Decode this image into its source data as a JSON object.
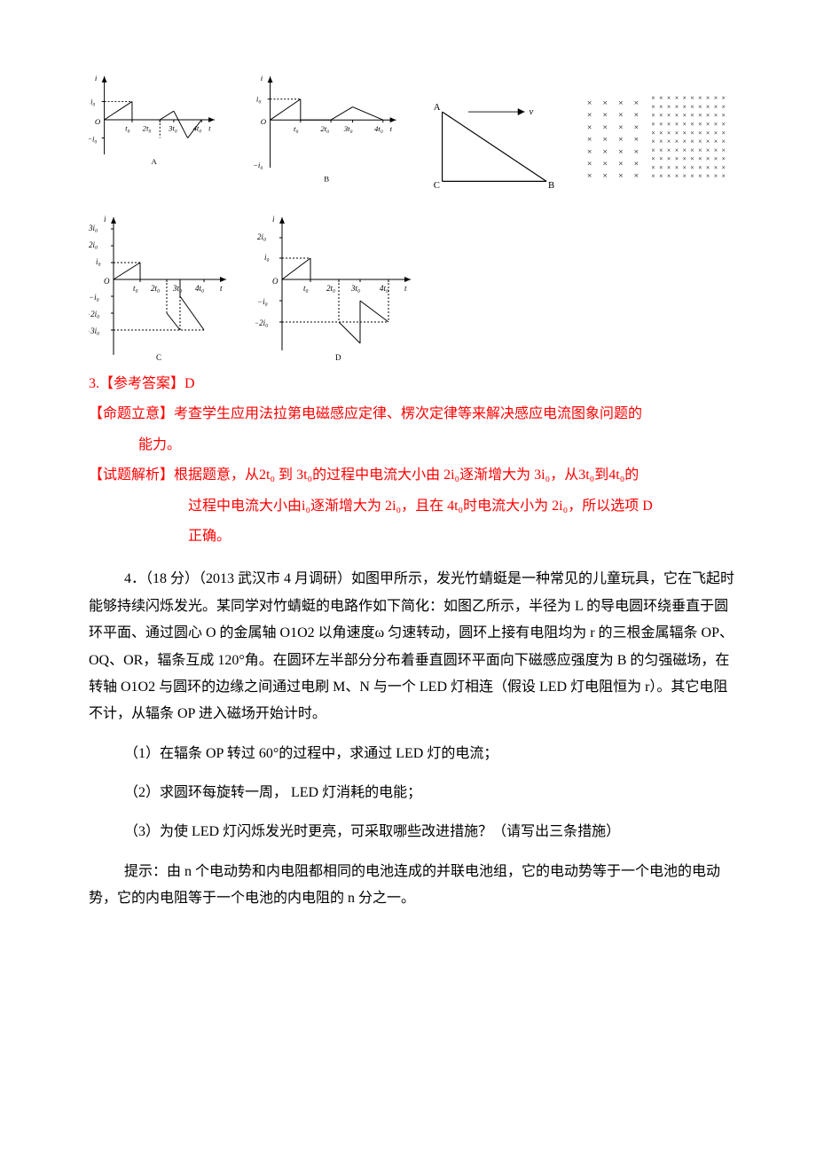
{
  "figures": {
    "graphA": {
      "label": "A",
      "axis_color": "#000000",
      "line_color": "#000000",
      "xticks_text": [
        "t₀",
        "2t₀",
        "3t₀",
        "4t₀",
        "t"
      ],
      "yticks_text": [
        "i₀",
        "−i₀"
      ]
    },
    "graphB": {
      "label": "B",
      "axis_color": "#000000",
      "line_color": "#000000",
      "xticks_text": [
        "t₀",
        "2t₀",
        "3t₀",
        "4t₀",
        "t"
      ],
      "yticks_text": [
        "i₀",
        "−i₀"
      ]
    },
    "graphC": {
      "label": "C",
      "axis_color": "#000000",
      "line_color": "#000000",
      "xticks_text": [
        "t₀",
        "2t₀",
        "3t₀",
        "4t₀",
        "t"
      ],
      "yticks_text": [
        "3i₀",
        "2i₀",
        "i₀",
        "−i₀",
        "−2i₀",
        "−3i₀"
      ]
    },
    "graphD": {
      "label": "D",
      "axis_color": "#000000",
      "line_color": "#000000",
      "xticks_text": [
        "t₀",
        "2t₀",
        "3t₀",
        "4t₀",
        "t"
      ],
      "yticks_text": [
        "2i₀",
        "i₀",
        "−i₀",
        "−2i₀"
      ]
    },
    "triangle": {
      "A": "A",
      "B": "B",
      "C": "C",
      "v": "v"
    }
  },
  "answer3": {
    "ref_label": "3.【参考答案】D",
    "intent_label": "【命题立意】考查学生应用法拉第电磁感应定律、楞次定律等来解决感应电流图象问题的",
    "intent_cont": "能力。",
    "analysis_label": "【试题解析】根据题意，从",
    "analysis_mid1": "的过程中电流大小由 2",
    "analysis_mid2": "逐渐增大为 3",
    "analysis_mid3": "，从",
    "analysis_mid4": "到",
    "analysis_mid5": "的",
    "analysis_line2a": "过程中电流大小由",
    "analysis_line2b": "逐渐增大为 2",
    "analysis_line2c": "，且在 4",
    "analysis_line2d": "时电流大小为 2",
    "analysis_line2e": "，所以选项 D",
    "analysis_line3": "正确。",
    "t2": "2t₀",
    "t3": "3t₀",
    "t4": "4t₀",
    "i0": "i₀",
    "t0": "t₀"
  },
  "problem4": {
    "body1": "4．（18 分）（2013 武汉市 4 月调研）如图甲所示，发光竹蜻蜓是一种常见的儿童玩具，它在飞起时能够持续闪烁发光。某同学对竹蜻蜓的电路作如下简化：如图乙所示，半径为 L 的导电圆环绕垂直于圆环平面、通过圆心 O 的金属轴 O1O2 以角速度ω 匀速转动，圆环上接有电阻均为 r 的三根金属辐条 OP、OQ、OR，辐条互成 120°角。在圆环左半部分分布着垂直圆环平面向下磁感应强度为 B 的匀强磁场，在转轴 O1O2 与圆环的边缘之间通过电刷 M、N 与一个 LED 灯相连（假设 LED 灯电阻恒为 r）。其它电阻不计，从辐条 OP 进入磁场开始计时。",
    "q1": "（1）在辐条 OP 转过 60°的过程中，求通过 LED 灯的电流；",
    "q2": "（2）求圆环每旋转一周， LED 灯消耗的电能；",
    "q3": "（3）为使 LED 灯闪烁发光时更亮，可采取哪些改进措施？（请写出三条措施）",
    "hint": "提示：由 n 个电动势和内电阻都相同的电池连成的并联电池组，它的电动势等于一个电池的电动势，它的内电阻等于一个电池的内电阻的 n 分之一。"
  },
  "colors": {
    "red": "#ff0000",
    "black": "#000000",
    "gray_wm": "#bfbfbf"
  }
}
